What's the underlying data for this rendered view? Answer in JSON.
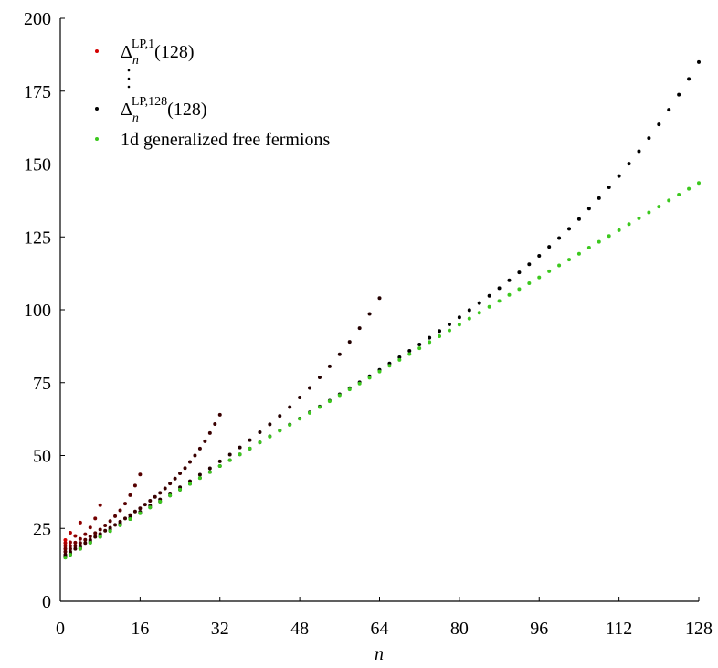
{
  "chart_data": {
    "type": "scatter",
    "x_label": "n",
    "xlim": [
      0,
      128
    ],
    "xticks": [
      0,
      16,
      32,
      48,
      64,
      80,
      96,
      112,
      128
    ],
    "ylim": [
      0,
      200
    ],
    "yticks": [
      0,
      25,
      50,
      75,
      100,
      125,
      150,
      175,
      200
    ],
    "series": [
      {
        "name": {
          "base": "Δ",
          "sub": "n",
          "sup": "LP,1",
          "tail": "(128)"
        },
        "color": "#d40000",
        "x": [
          1
        ],
        "values": [
          21.0
        ]
      },
      {
        "color": "#b00000",
        "x": [
          1,
          2
        ],
        "values": [
          20.0,
          23.5
        ]
      },
      {
        "color": "#900000",
        "x": [
          1,
          2,
          3,
          4
        ],
        "values": [
          19.0,
          20.2,
          22.4,
          27.0
        ]
      },
      {
        "color": "#740000",
        "x": [
          1,
          2,
          3,
          4,
          5,
          6,
          7,
          8
        ],
        "values": [
          18.0,
          19.0,
          20.1,
          21.4,
          23.0,
          25.3,
          28.4,
          33.0
        ]
      },
      {
        "color": "#560000",
        "x": [
          1,
          2,
          3,
          4,
          5,
          6,
          7,
          8,
          9,
          10,
          11,
          12,
          13,
          14,
          15,
          16
        ],
        "values": [
          17.0,
          18.0,
          19.0,
          20.0,
          21.1,
          22.2,
          23.4,
          24.6,
          26.0,
          27.5,
          29.2,
          31.2,
          33.5,
          36.4,
          39.7,
          43.5
        ]
      },
      {
        "color": "#3a0000",
        "x": [
          1,
          2,
          3,
          4,
          5,
          6,
          7,
          8,
          9,
          10,
          11,
          12,
          13,
          14,
          15,
          16,
          17,
          18,
          19,
          20,
          21,
          22,
          23,
          24,
          25,
          26,
          27,
          28,
          29,
          30,
          31,
          32
        ],
        "values": [
          16.0,
          17.0,
          18.0,
          19.0,
          20.0,
          21.1,
          22.1,
          23.1,
          24.2,
          25.2,
          26.2,
          27.3,
          28.4,
          29.6,
          30.8,
          31.9,
          33.2,
          34.5,
          35.8,
          37.2,
          38.7,
          40.4,
          42.1,
          43.9,
          45.7,
          47.8,
          50.0,
          52.4,
          54.9,
          57.7,
          60.8,
          64.0
        ]
      },
      {
        "color": "#220000",
        "x": [
          1,
          2,
          4,
          6,
          8,
          10,
          12,
          14,
          16,
          18,
          20,
          22,
          24,
          26,
          28,
          30,
          32,
          34,
          36,
          38,
          40,
          42,
          44,
          46,
          48,
          50,
          52,
          54,
          56,
          58,
          60,
          62,
          64
        ],
        "values": [
          15.5,
          16.5,
          18.5,
          20.6,
          22.6,
          24.6,
          26.6,
          28.7,
          30.7,
          32.8,
          34.9,
          37.0,
          39.1,
          41.2,
          43.4,
          45.6,
          48.0,
          50.3,
          52.8,
          55.3,
          58.0,
          60.7,
          63.6,
          66.6,
          69.9,
          73.2,
          76.8,
          80.6,
          84.7,
          89.0,
          93.7,
          98.6,
          104.0
        ]
      },
      {
        "name": {
          "base": "Δ",
          "sub": "n",
          "sup": "LP,128",
          "tail": "(128)"
        },
        "color": "#000000",
        "x": [
          1,
          2,
          4,
          6,
          8,
          10,
          12,
          14,
          16,
          18,
          20,
          22,
          24,
          26,
          28,
          30,
          32,
          34,
          36,
          38,
          40,
          42,
          44,
          46,
          48,
          50,
          52,
          54,
          56,
          58,
          60,
          62,
          64,
          66,
          68,
          70,
          72,
          74,
          76,
          78,
          80,
          82,
          84,
          86,
          88,
          90,
          92,
          94,
          96,
          98,
          100,
          102,
          104,
          106,
          108,
          110,
          112,
          114,
          116,
          118,
          120,
          122,
          124,
          126,
          128
        ],
        "values": [
          15.0,
          16.0,
          18.0,
          20.1,
          22.1,
          24.1,
          26.1,
          28.2,
          30.2,
          32.2,
          34.2,
          36.3,
          38.3,
          40.3,
          42.3,
          44.3,
          46.4,
          48.4,
          50.4,
          52.4,
          54.5,
          56.6,
          58.6,
          60.6,
          62.7,
          64.8,
          66.8,
          68.8,
          71.0,
          73.1,
          75.1,
          77.2,
          79.4,
          81.6,
          83.7,
          85.9,
          88.1,
          90.4,
          92.7,
          95.0,
          97.4,
          99.9,
          102.3,
          104.8,
          107.4,
          110.1,
          112.8,
          115.6,
          118.5,
          121.6,
          124.6,
          127.8,
          131.1,
          134.7,
          138.3,
          142.0,
          145.9,
          150.1,
          154.4,
          158.9,
          163.6,
          168.6,
          173.8,
          179.2,
          185.0
        ]
      },
      {
        "name": "1d generalized free fermions",
        "color": "#3cc81e",
        "x": [
          1,
          2,
          4,
          6,
          8,
          10,
          12,
          14,
          16,
          18,
          20,
          22,
          24,
          26,
          28,
          30,
          32,
          34,
          36,
          38,
          40,
          42,
          44,
          46,
          48,
          50,
          52,
          54,
          56,
          58,
          60,
          62,
          64,
          66,
          68,
          70,
          72,
          74,
          76,
          78,
          80,
          82,
          84,
          86,
          88,
          90,
          92,
          94,
          96,
          98,
          100,
          102,
          104,
          106,
          108,
          110,
          112,
          114,
          116,
          118,
          120,
          122,
          124,
          126,
          128
        ],
        "values": [
          15.0,
          16.0,
          18.0,
          20.1,
          22.1,
          24.1,
          26.1,
          28.2,
          30.2,
          32.2,
          34.2,
          36.3,
          38.3,
          40.3,
          42.3,
          44.3,
          46.4,
          48.4,
          50.4,
          52.4,
          54.5,
          56.5,
          58.5,
          60.5,
          62.6,
          64.6,
          66.6,
          68.6,
          70.7,
          72.7,
          74.7,
          76.7,
          78.8,
          80.8,
          82.8,
          84.8,
          86.8,
          88.9,
          90.9,
          92.9,
          94.9,
          97.0,
          99.0,
          101.0,
          103.0,
          105.1,
          107.1,
          109.1,
          111.1,
          113.2,
          115.2,
          117.2,
          119.2,
          121.3,
          123.3,
          125.3,
          127.3,
          129.4,
          131.4,
          133.4,
          135.4,
          137.5,
          139.5,
          141.5,
          143.5
        ]
      }
    ]
  }
}
